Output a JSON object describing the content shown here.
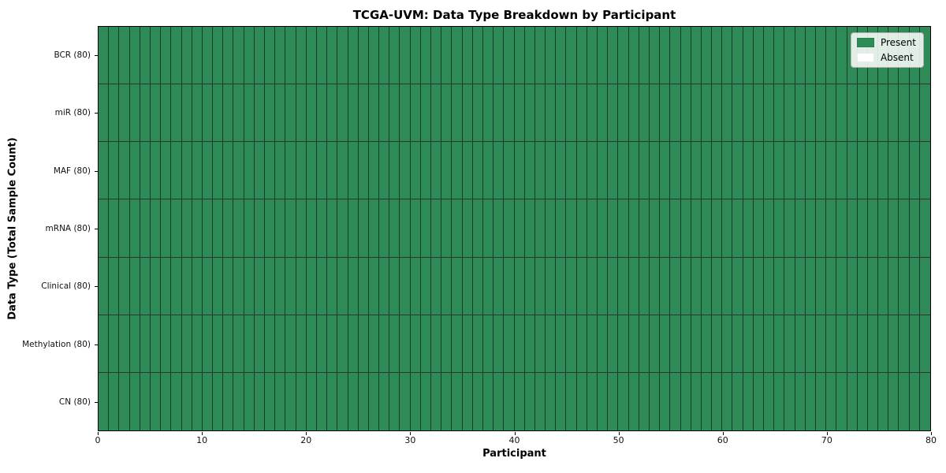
{
  "chart_data": {
    "type": "heatmap",
    "title": "TCGA-UVM: Data Type Breakdown by Participant",
    "xlabel": "Participant",
    "ylabel": "Data Type (Total Sample Count)",
    "x_range": [
      0,
      80
    ],
    "x_ticks": [
      0,
      10,
      20,
      30,
      40,
      50,
      60,
      70,
      80
    ],
    "n_participants": 80,
    "rows": [
      {
        "label": "BCR (80)",
        "data_type": "BCR",
        "total_samples": 80,
        "present_count": 80,
        "absent_count": 0
      },
      {
        "label": "miR (80)",
        "data_type": "miR",
        "total_samples": 80,
        "present_count": 80,
        "absent_count": 0
      },
      {
        "label": "MAF (80)",
        "data_type": "MAF",
        "total_samples": 80,
        "present_count": 80,
        "absent_count": 0
      },
      {
        "label": "mRNA (80)",
        "data_type": "mRNA",
        "total_samples": 80,
        "present_count": 80,
        "absent_count": 0
      },
      {
        "label": "Clinical (80)",
        "data_type": "Clinical",
        "total_samples": 80,
        "present_count": 80,
        "absent_count": 0
      },
      {
        "label": "Methylation (80)",
        "data_type": "Methylation",
        "total_samples": 80,
        "present_count": 80,
        "absent_count": 0
      },
      {
        "label": "CN (80)",
        "data_type": "CN",
        "total_samples": 80,
        "present_count": 80,
        "absent_count": 0
      }
    ],
    "legend": {
      "position": "upper right",
      "entries": [
        {
          "label": "Present",
          "color": "#2e8b57"
        },
        {
          "label": "Absent",
          "color": "#ffffff"
        }
      ]
    },
    "colors": {
      "present": "#2e8b57",
      "absent": "#ffffff",
      "cell_border": "rgba(0,0,0,0.55)"
    },
    "grid": false
  }
}
